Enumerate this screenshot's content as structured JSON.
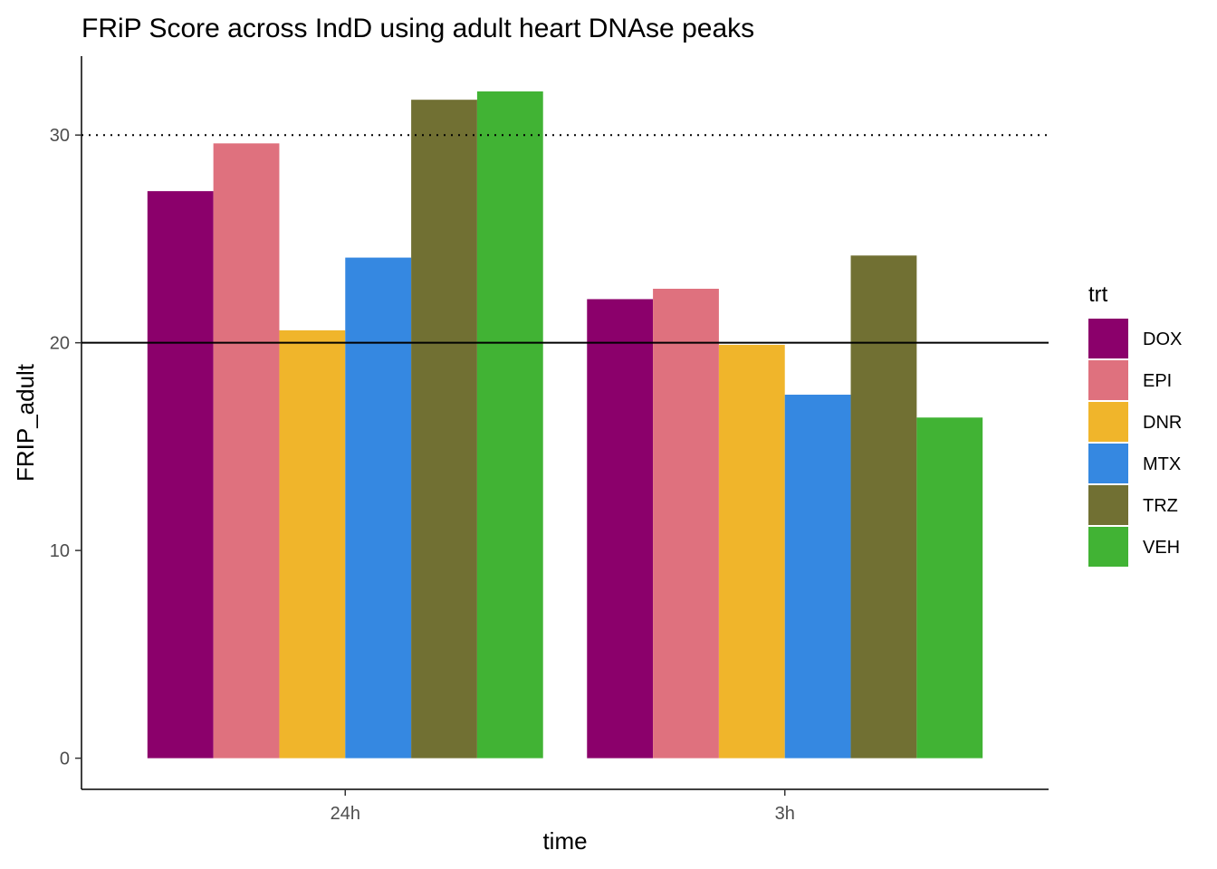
{
  "chart_data": {
    "type": "bar",
    "title": "FRiP Score across IndD using adult heart DNAse peaks",
    "xlabel": "time",
    "ylabel": "FRIP_adult",
    "categories": [
      "24h",
      "3h"
    ],
    "y_ticks": [
      "0",
      "10",
      "20",
      "30"
    ],
    "ylim": [
      -1.5,
      33.8
    ],
    "grid": false,
    "legend": {
      "title": "trt",
      "placement": "right"
    },
    "reference_lines": [
      {
        "y": 30,
        "style": "dotted",
        "color": "#000000"
      },
      {
        "y": 20,
        "style": "solid",
        "color": "#000000"
      }
    ],
    "series": [
      {
        "name": "DOX",
        "color": "#8B006B",
        "values": [
          27.3,
          22.1
        ]
      },
      {
        "name": "EPI",
        "color": "#DF717E",
        "values": [
          29.6,
          22.6
        ]
      },
      {
        "name": "DNR",
        "color": "#F0B52B",
        "values": [
          20.6,
          19.9
        ]
      },
      {
        "name": "MTX",
        "color": "#3588E1",
        "values": [
          24.1,
          17.5
        ]
      },
      {
        "name": "TRZ",
        "color": "#717033",
        "values": [
          31.7,
          24.2
        ]
      },
      {
        "name": "VEH",
        "color": "#41B334",
        "values": [
          32.1,
          16.4
        ]
      }
    ]
  }
}
